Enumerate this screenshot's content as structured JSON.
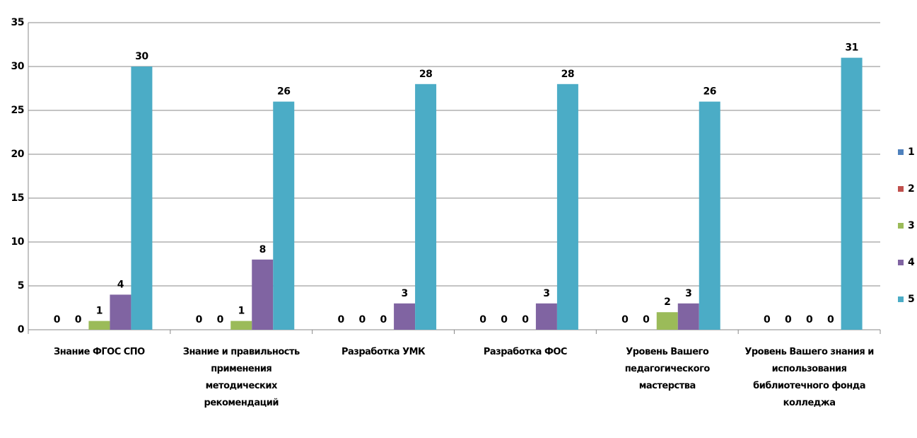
{
  "chart_data": {
    "type": "bar",
    "categories": [
      "Знание ФГОС СПО",
      "Знание и правильность применения методических рекомендаций",
      "Разработка УМК",
      "Разработка ФОС",
      "Уровень Вашего педагогического мастерства",
      "Уровень Вашего знания и использования библиотечного фонда колледжа"
    ],
    "series": [
      {
        "name": "1",
        "color": "#4f81bd",
        "values": [
          0,
          0,
          0,
          0,
          0,
          0
        ]
      },
      {
        "name": "2",
        "color": "#c0504d",
        "values": [
          0,
          0,
          0,
          0,
          0,
          0
        ]
      },
      {
        "name": "3",
        "color": "#9bbb59",
        "values": [
          1,
          1,
          0,
          0,
          2,
          0
        ]
      },
      {
        "name": "4",
        "color": "#8064a2",
        "values": [
          4,
          8,
          3,
          3,
          3,
          0
        ]
      },
      {
        "name": "5",
        "color": "#4bacc6",
        "values": [
          30,
          26,
          28,
          28,
          26,
          31
        ]
      }
    ],
    "ylim": [
      0,
      35
    ],
    "yticks": [
      0,
      5,
      10,
      15,
      20,
      25,
      30,
      35
    ],
    "grid": true,
    "legend": "right"
  }
}
